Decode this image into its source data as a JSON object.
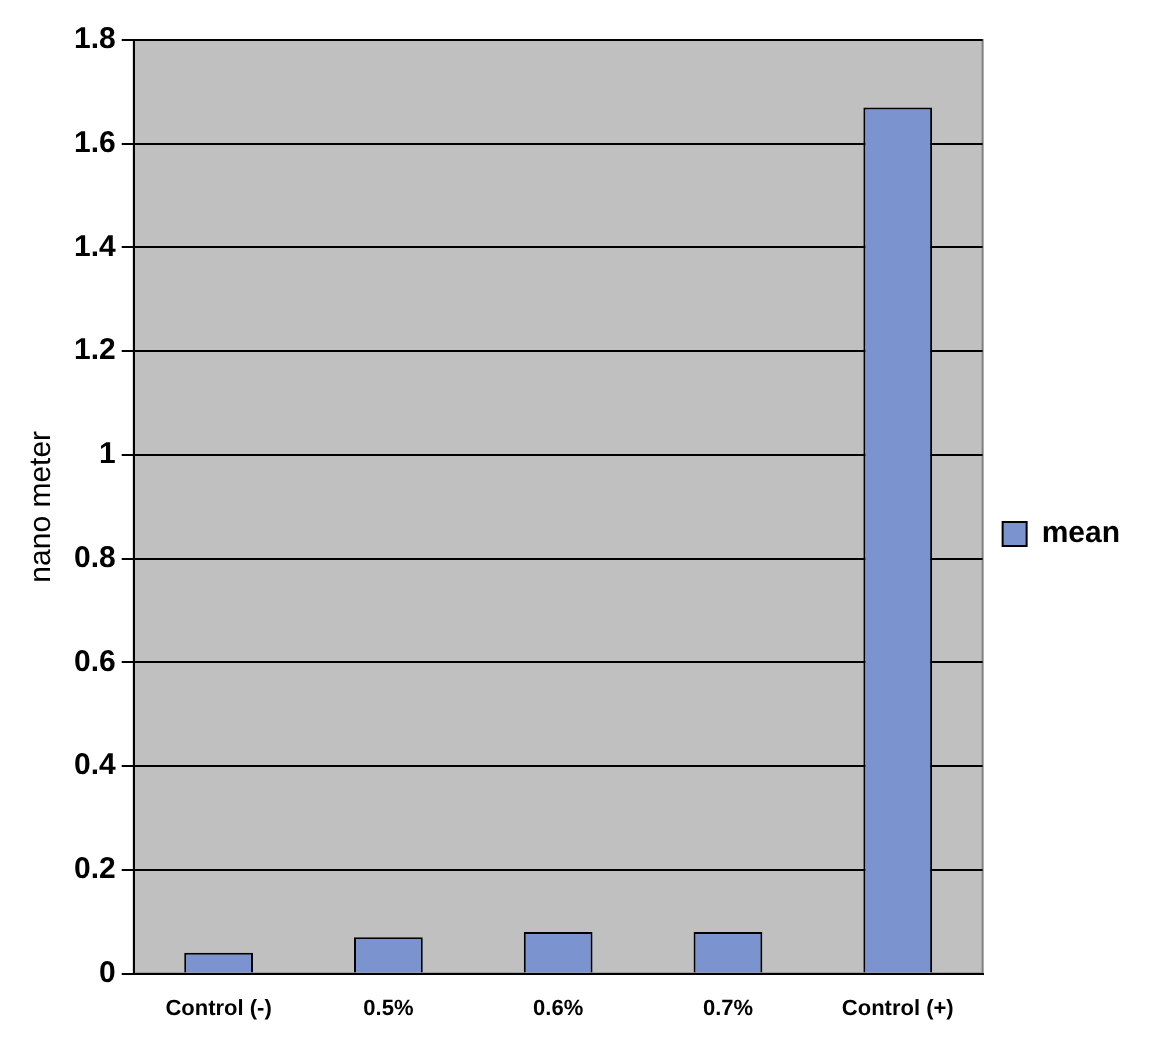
{
  "chart_data": {
    "type": "bar",
    "ylabel": "nano meter",
    "categories": [
      "Control (-)",
      "0.5%",
      "0.6%",
      "0.7%",
      "Control (+)"
    ],
    "series": [
      {
        "name": "mean",
        "color": "#7b93cf",
        "values": [
          0.04,
          0.07,
          0.08,
          0.08,
          1.67
        ]
      }
    ],
    "ylim": [
      0,
      1.8
    ],
    "yticks": [
      0,
      0.2,
      0.4,
      0.6,
      0.8,
      1,
      1.2,
      1.4,
      1.6,
      1.8
    ],
    "grid": "y",
    "legend": "right"
  }
}
